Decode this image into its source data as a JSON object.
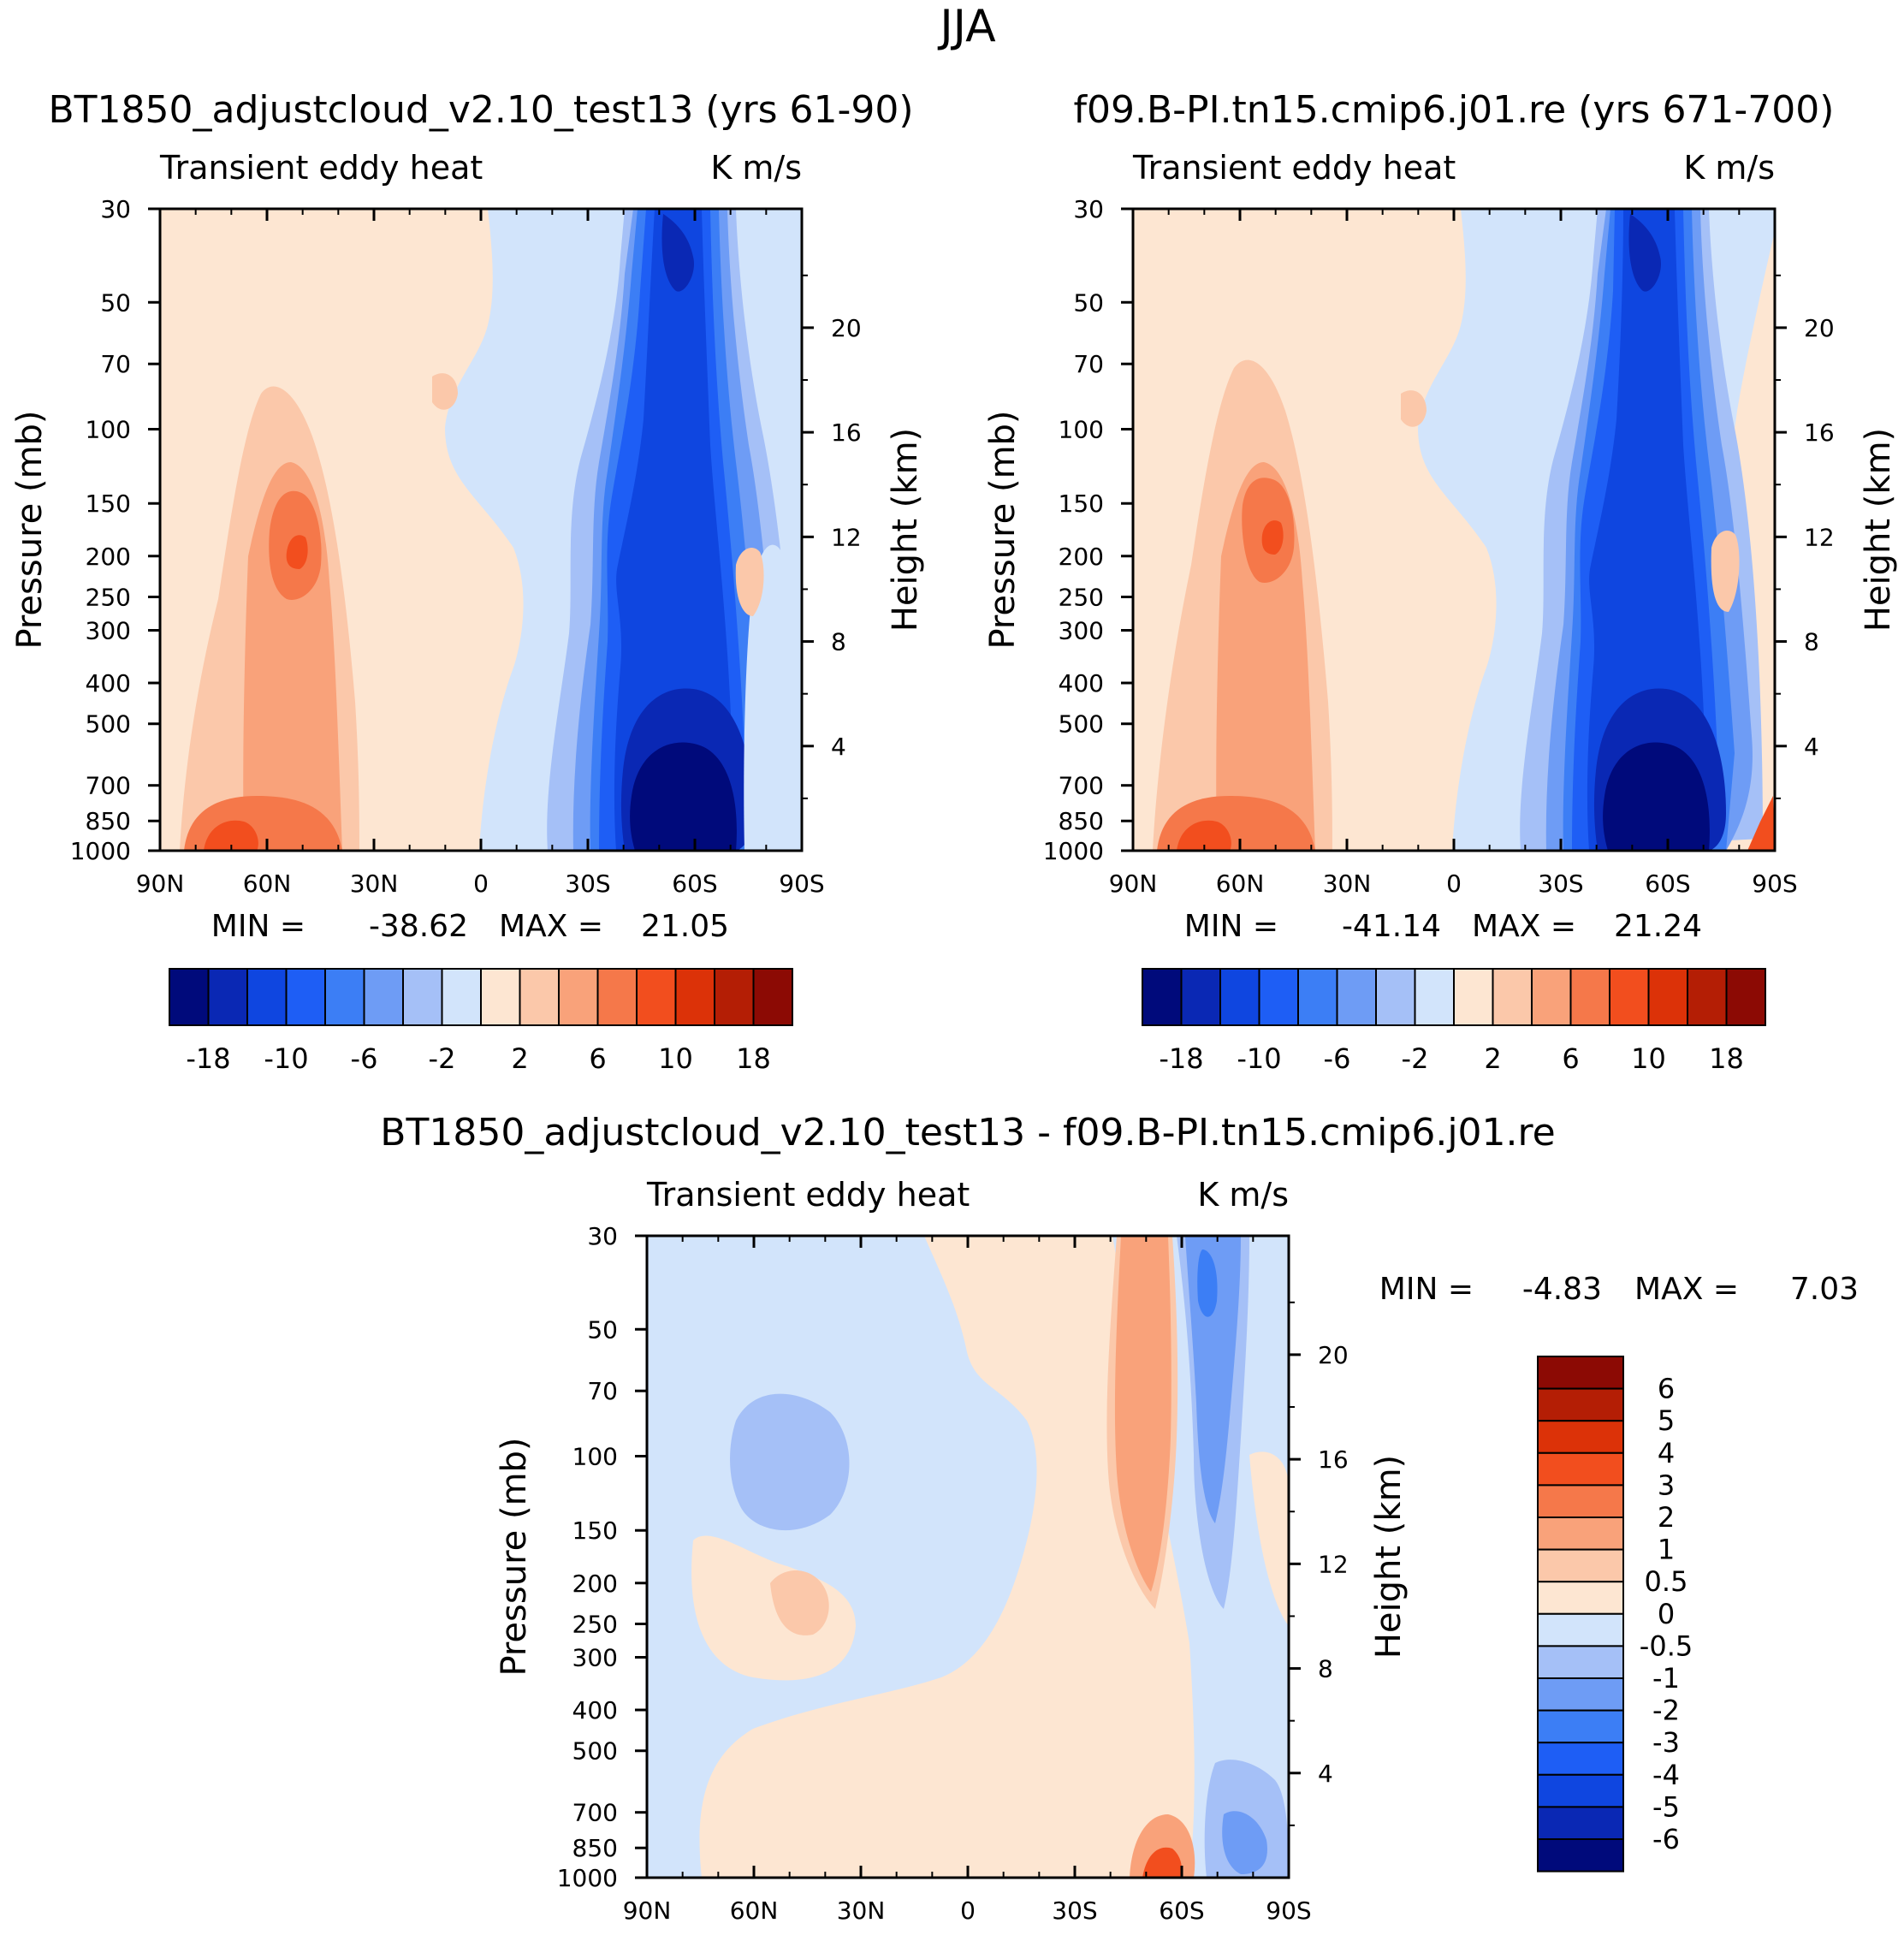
{
  "figure_title": "JJA",
  "colors": {
    "levels_main": [
      "#000a7b",
      "#0a28b4",
      "#0f46e0",
      "#1e5ef5",
      "#3c7ef5",
      "#6e9cf5",
      "#a5c0f7",
      "#d2e4fb",
      "#fde6d2",
      "#fbc8aa",
      "#f9a27a",
      "#f5784a",
      "#f24e1e",
      "#dc3208",
      "#b41e05",
      "#8c0a04"
    ],
    "levels_diff": [
      "#000a7b",
      "#0a28b4",
      "#0f46e0",
      "#1e5ef5",
      "#3c7ef5",
      "#6e9cf5",
      "#a5c0f7",
      "#d2e4fb",
      "#fde6d2",
      "#fbc8aa",
      "#f9a27a",
      "#f5784a",
      "#f24e1e",
      "#dc3208",
      "#b41e05",
      "#8c0a04"
    ]
  },
  "chart_data": [
    {
      "type": "heatmap",
      "panel": "top-left",
      "title": "BT1850_adjustcloud_v2.10_test13 (yrs 61-90)",
      "left_string": "Transient eddy heat",
      "right_string": "K m/s",
      "xlabel": "",
      "ylabel": "Pressure (mb)",
      "ylabel_right": "Height (km)",
      "x_ticks": [
        "90N",
        "60N",
        "30N",
        "0",
        "30S",
        "60S",
        "90S"
      ],
      "y_ticks": [
        "30",
        "50",
        "70",
        "100",
        "150",
        "200",
        "250",
        "300",
        "400",
        "500",
        "700",
        "850",
        "1000"
      ],
      "y_right_ticks": [
        "20",
        "16",
        "12",
        "8",
        "4"
      ],
      "xlim": [
        90,
        -90
      ],
      "ylim": [
        1000,
        30
      ],
      "min_label": "MIN =",
      "min_value": "-38.62",
      "max_label": "MAX =",
      "max_value": "21.05",
      "colorbar_labels": [
        "-18",
        "-10",
        "-6",
        "-2",
        "2",
        "6",
        "10",
        "18"
      ],
      "colorbar_levels": [
        -18,
        -14,
        -10,
        -8,
        -6,
        -4,
        -2,
        0,
        2,
        4,
        6,
        8,
        10,
        14,
        18
      ],
      "features": [
        {
          "lat": 48,
          "p": 200,
          "value": 12
        },
        {
          "lat": 68,
          "p": 950,
          "value": 14
        },
        {
          "lat": -52,
          "p": 850,
          "value": -38.62
        },
        {
          "lat": -50,
          "p": 30,
          "value": -20
        },
        {
          "lat": -40,
          "p": 200,
          "value": -14
        }
      ]
    },
    {
      "type": "heatmap",
      "panel": "top-right",
      "title": "f09.B-PI.tn15.cmip6.j01.re (yrs 671-700)",
      "left_string": "Transient eddy heat",
      "right_string": "K m/s",
      "xlabel": "",
      "ylabel": "Pressure (mb)",
      "ylabel_right": "Height (km)",
      "x_ticks": [
        "90N",
        "60N",
        "30N",
        "0",
        "30S",
        "60S",
        "90S"
      ],
      "y_ticks": [
        "30",
        "50",
        "70",
        "100",
        "150",
        "200",
        "250",
        "300",
        "400",
        "500",
        "700",
        "850",
        "1000"
      ],
      "y_right_ticks": [
        "20",
        "16",
        "12",
        "8",
        "4"
      ],
      "xlim": [
        90,
        -90
      ],
      "ylim": [
        1000,
        30
      ],
      "min_label": "MIN =",
      "min_value": "-41.14",
      "max_label": "MAX =",
      "max_value": "21.24",
      "colorbar_labels": [
        "-18",
        "-10",
        "-6",
        "-2",
        "2",
        "6",
        "10",
        "18"
      ],
      "colorbar_levels": [
        -18,
        -14,
        -10,
        -8,
        -6,
        -4,
        -2,
        0,
        2,
        4,
        6,
        8,
        10,
        14,
        18
      ],
      "features": [
        {
          "lat": 50,
          "p": 180,
          "value": 12
        },
        {
          "lat": 68,
          "p": 950,
          "value": 14
        },
        {
          "lat": -52,
          "p": 850,
          "value": -41.14
        },
        {
          "lat": -50,
          "p": 30,
          "value": -20
        },
        {
          "lat": -40,
          "p": 200,
          "value": -14
        }
      ]
    },
    {
      "type": "heatmap",
      "panel": "bottom",
      "title": "BT1850_adjustcloud_v2.10_test13 - f09.B-PI.tn15.cmip6.j01.re",
      "left_string": "Transient eddy heat",
      "right_string": "K m/s",
      "xlabel": "",
      "ylabel": "Pressure (mb)",
      "ylabel_right": "Height (km)",
      "x_ticks": [
        "90N",
        "60N",
        "30N",
        "0",
        "30S",
        "60S",
        "90S"
      ],
      "y_ticks": [
        "30",
        "50",
        "70",
        "100",
        "150",
        "200",
        "250",
        "300",
        "400",
        "500",
        "700",
        "850",
        "1000"
      ],
      "y_right_ticks": [
        "20",
        "16",
        "12",
        "8",
        "4"
      ],
      "xlim": [
        90,
        -90
      ],
      "ylim": [
        1000,
        30
      ],
      "min_label": "MIN =",
      "min_value": "-4.83",
      "max_label": "MAX =",
      "max_value": "7.03",
      "colorbar_labels": [
        "6",
        "5",
        "4",
        "3",
        "2",
        "1",
        "0.5",
        "0",
        "-0.5",
        "-1",
        "-2",
        "-3",
        "-4",
        "-5",
        "-6"
      ],
      "colorbar_levels": [
        -6,
        -5,
        -4,
        -3,
        -2,
        -1,
        -0.5,
        0,
        0.5,
        1,
        2,
        3,
        4,
        5,
        6
      ],
      "features": [
        {
          "lat": -45,
          "p": 100,
          "value": 2
        },
        {
          "lat": -65,
          "p": 40,
          "value": -3
        },
        {
          "lat": 50,
          "p": 100,
          "value": -1
        },
        {
          "lat": -48,
          "p": 900,
          "value": 4
        }
      ]
    }
  ]
}
